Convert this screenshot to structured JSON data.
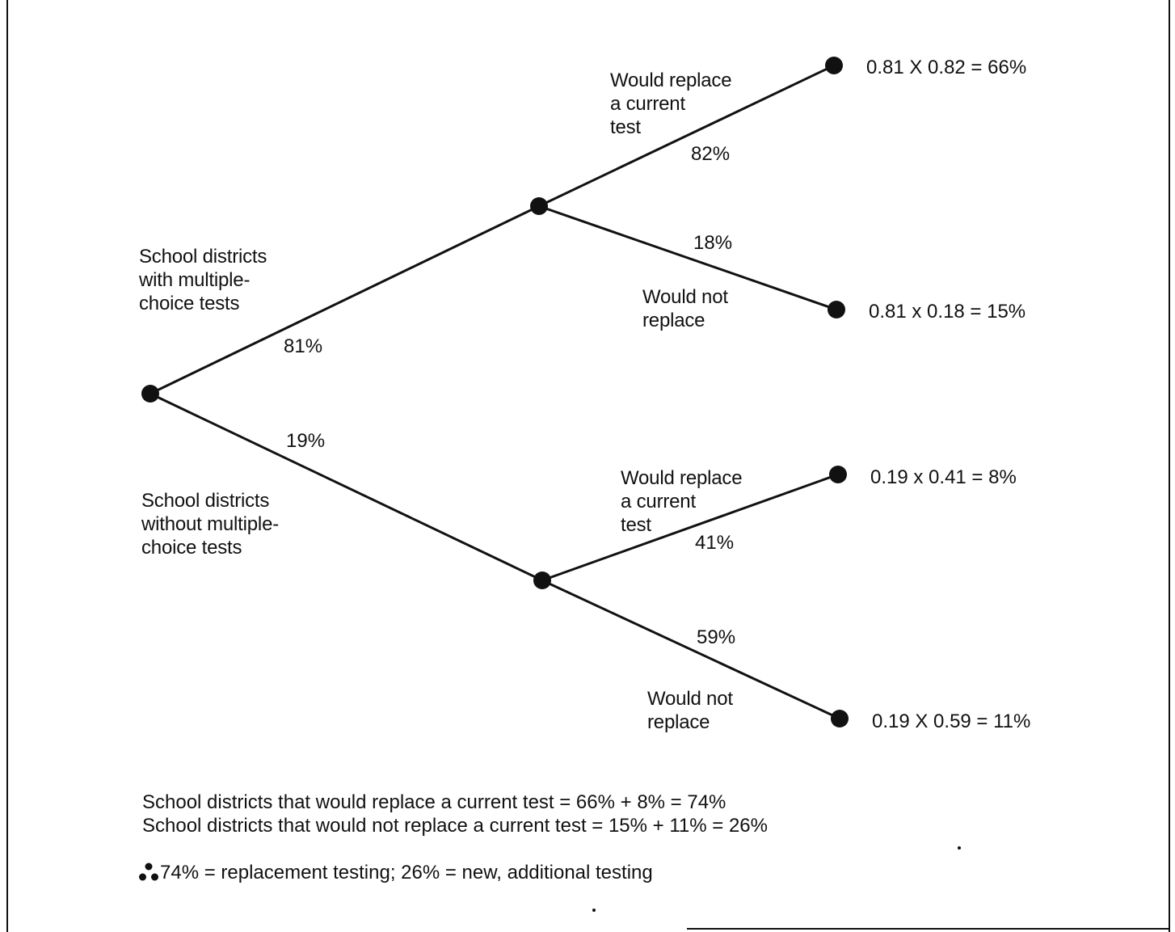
{
  "root": {
    "upper_branch_label": "School districts\nwith multiple-\nchoice tests",
    "upper_branch_pct": "81%",
    "lower_branch_label": "School districts\nwithout multiple-\nchoice tests",
    "lower_branch_pct": "19%"
  },
  "upper_node": {
    "replace_label": "Would replace\na current\ntest",
    "replace_pct": "82%",
    "not_replace_label": "Would not\nreplace",
    "not_replace_pct": "18%"
  },
  "lower_node": {
    "replace_label": "Would replace\na current\ntest",
    "replace_pct": "41%",
    "not_replace_label": "Would not\nreplace",
    "not_replace_pct": "59%"
  },
  "outcomes": {
    "upper_replace": "0.81 X 0.82 = 66%",
    "upper_not_replace": "0.81 x 0.18 = 15%",
    "lower_replace": "0.19 x 0.41 = 8%",
    "lower_not_replace": "0.19 X 0.59 = 11%"
  },
  "summary": {
    "replace_line": "School districts that would replace a current test = 66% + 8% = 74%",
    "not_replace_line": "School districts that would not replace a current test = 15% + 11% = 26%",
    "conclusion": "74% = replacement testing; 26% = new, additional testing"
  }
}
